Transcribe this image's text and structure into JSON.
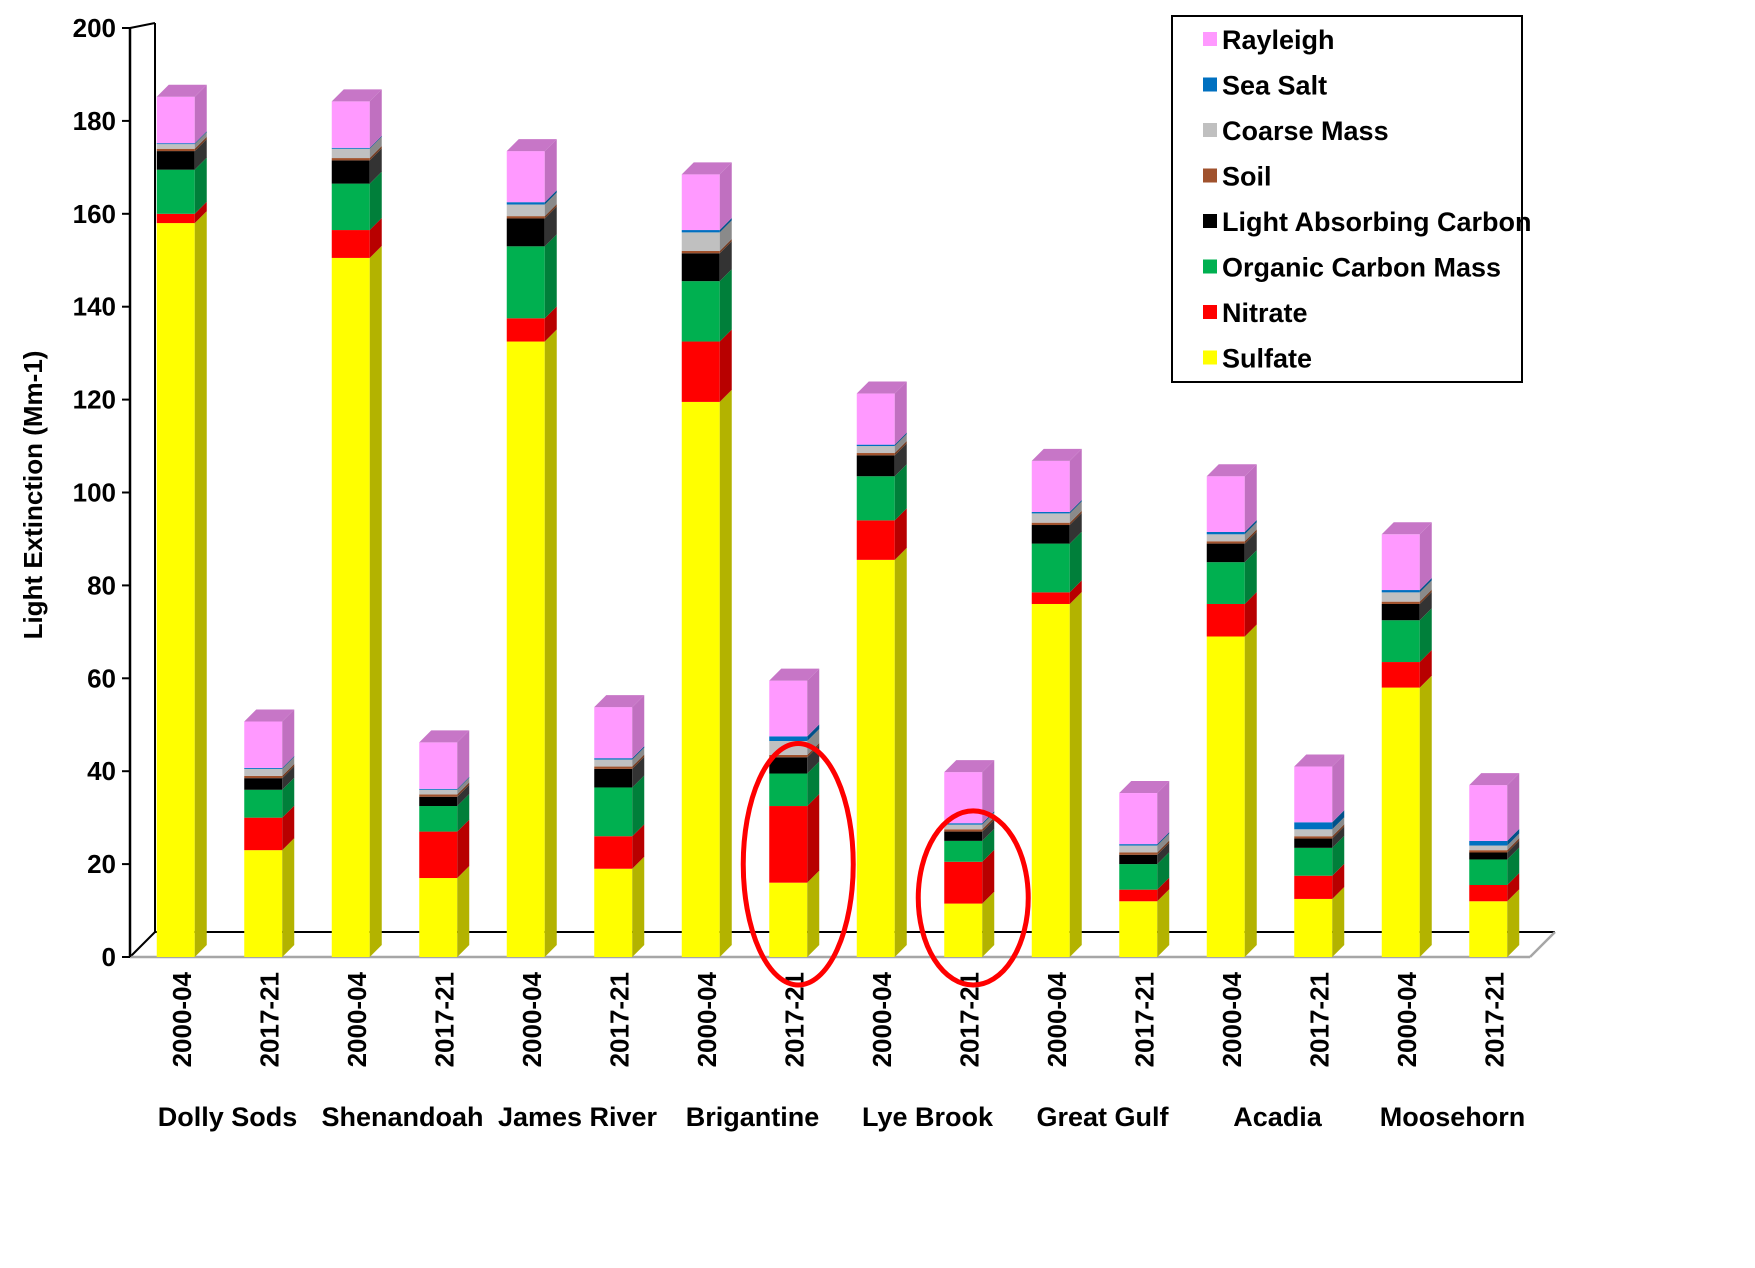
{
  "chart_data": {
    "type": "bar",
    "stacked": true,
    "three_d": true,
    "ylabel": "Light Extinction (Mm-1)",
    "ylim": [
      0,
      200
    ],
    "yticks": [
      0,
      20,
      40,
      60,
      80,
      100,
      120,
      140,
      160,
      180,
      200
    ],
    "grid": false,
    "legend_position": "top-right",
    "categories": [
      "2000-04",
      "2017-21",
      "2000-04",
      "2017-21",
      "2000-04",
      "2017-21",
      "2000-04",
      "2017-21",
      "2000-04",
      "2017-21",
      "2000-04",
      "2017-21",
      "2000-04",
      "2017-21",
      "2000-04",
      "2017-21"
    ],
    "groups": [
      "Dolly Sods",
      "Shenandoah",
      "James River",
      "Brigantine",
      "Lye Brook",
      "Great Gulf",
      "Acadia",
      "Moosehorn"
    ],
    "series": [
      {
        "name": "Sulfate",
        "color": "#ffff00",
        "values": [
          158,
          23,
          150.5,
          17,
          132.5,
          19,
          119.5,
          16,
          85.5,
          11.5,
          76,
          12,
          69,
          12.5,
          58,
          12
        ]
      },
      {
        "name": "Nitrate",
        "color": "#ff0000",
        "values": [
          2,
          7,
          6,
          10,
          5,
          7,
          13,
          16.5,
          8.5,
          9,
          2.5,
          2.5,
          7,
          5,
          5.5,
          3.5
        ]
      },
      {
        "name": "Organic Carbon Mass",
        "color": "#00b050",
        "values": [
          9.5,
          6,
          10,
          5.5,
          15.5,
          10.5,
          13,
          7,
          9.5,
          4.5,
          10.5,
          5.5,
          9,
          6,
          9,
          5.5
        ]
      },
      {
        "name": "Light Absorbing Carbon",
        "color": "#000000",
        "values": [
          4,
          2.5,
          5,
          2,
          6,
          4,
          6,
          3.5,
          4.5,
          2,
          4,
          2,
          4,
          2,
          3.5,
          1.5
        ]
      },
      {
        "name": "Soil",
        "color": "#a0522d",
        "values": [
          0.5,
          0.5,
          0.5,
          0.5,
          0.5,
          0.5,
          0.5,
          0.5,
          0.5,
          0.5,
          0.5,
          0.5,
          0.5,
          0.5,
          0.5,
          0.5
        ]
      },
      {
        "name": "Coarse Mass",
        "color": "#c0c0c0",
        "values": [
          1,
          1.5,
          2,
          1,
          2.5,
          1.5,
          4,
          3,
          1.5,
          1,
          2,
          1.5,
          1.5,
          1.5,
          2,
          1
        ]
      },
      {
        "name": "Sea Salt",
        "color": "#0070c0",
        "values": [
          0.2,
          0.2,
          0.2,
          0.2,
          0.5,
          0.3,
          0.5,
          1,
          0.3,
          0.3,
          0.3,
          0.3,
          0.5,
          1.5,
          0.5,
          1
        ]
      },
      {
        "name": "Rayleigh",
        "color": "#ff99ff",
        "values": [
          10,
          10,
          10,
          10,
          11,
          11,
          12,
          12,
          11,
          11,
          11,
          11,
          12,
          12,
          12,
          12
        ]
      }
    ],
    "annotations": [
      {
        "type": "ellipse",
        "color": "#ff0000",
        "target_index": 7
      },
      {
        "type": "ellipse",
        "color": "#ff0000",
        "target_index": 9
      }
    ]
  }
}
